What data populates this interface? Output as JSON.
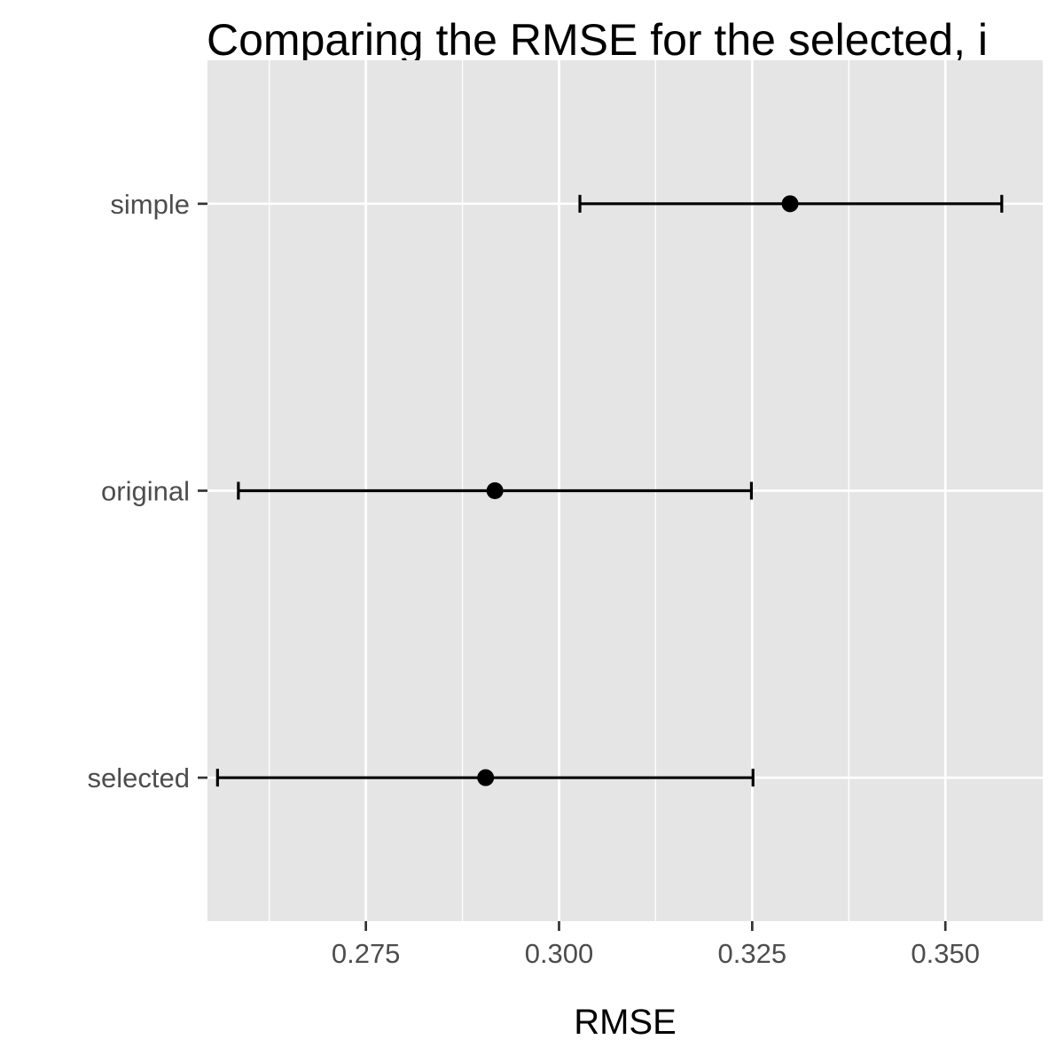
{
  "chart_data": {
    "type": "errorbar",
    "title": "Comparing the RMSE for the selected, i",
    "xlabel": "RMSE",
    "ylabel": "",
    "xlim": [
      0.2545,
      0.3626
    ],
    "x_major_ticks": [
      0.275,
      0.3,
      0.325,
      0.35
    ],
    "x_tick_labels": [
      "0.275",
      "0.300",
      "0.325",
      "0.350"
    ],
    "x_minor_ticks": [
      0.2625,
      0.2875,
      0.3125,
      0.3375
    ],
    "categories": [
      "simple",
      "original",
      "selected"
    ],
    "points": [
      {
        "category": "simple",
        "estimate": 0.3299,
        "lower": 0.3027,
        "upper": 0.3573
      },
      {
        "category": "original",
        "estimate": 0.2917,
        "lower": 0.2585,
        "upper": 0.3249
      },
      {
        "category": "selected",
        "estimate": 0.2905,
        "lower": 0.2558,
        "upper": 0.3251
      }
    ],
    "grid": true,
    "legend": "none",
    "colors": {
      "panel": "#e5e5e5",
      "grid": "#ffffff",
      "marks": "#000000",
      "tick_text": "#4d4d4d"
    }
  }
}
